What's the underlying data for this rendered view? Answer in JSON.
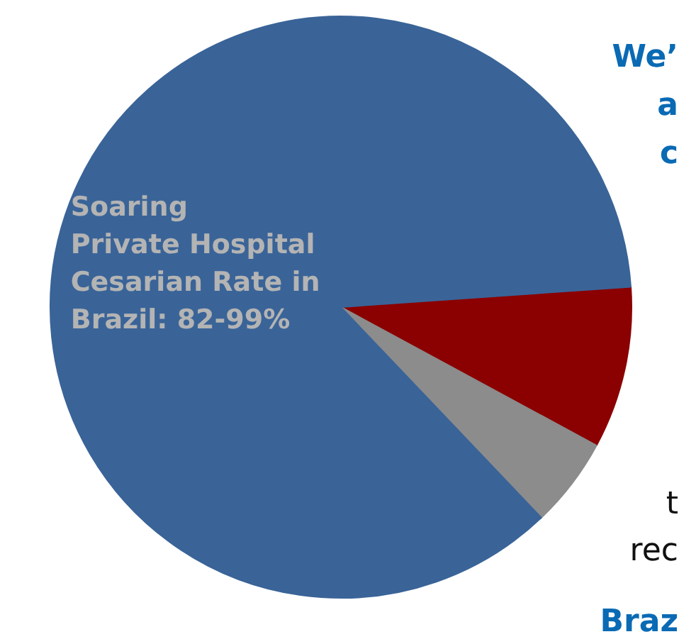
{
  "chart_data": {
    "type": "pie",
    "categories": [
      null,
      null,
      "Soaring\nPrivate Hospital\nCesarian Rate in\nBrazil: 82-99%"
    ],
    "values": [
      9,
      5,
      86
    ],
    "colors": [
      "#8b0000",
      "#8c8c8c",
      "#3a6498"
    ],
    "annotations": [
      "We’",
      "a",
      "c",
      "t",
      "rec",
      "Braz"
    ]
  }
}
